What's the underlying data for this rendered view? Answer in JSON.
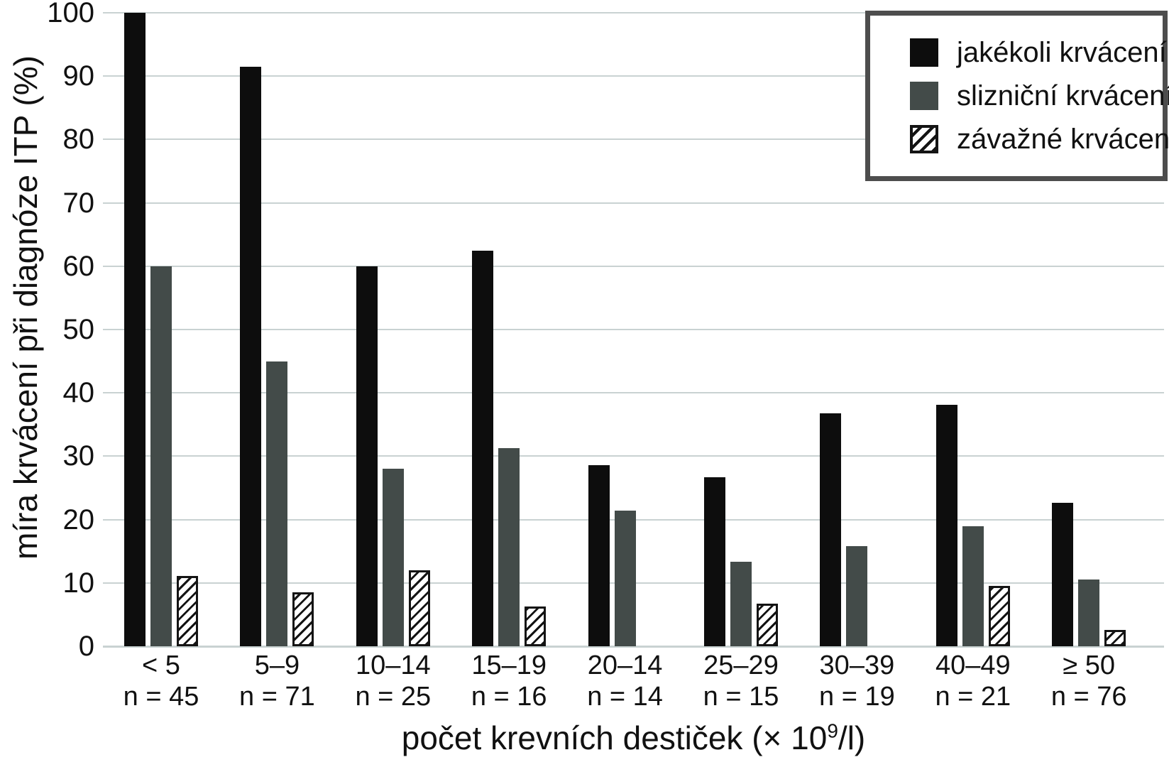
{
  "chart_data": {
    "type": "bar",
    "title": "",
    "ylabel": "míra krvácení při diagnóze ITP (%)",
    "xlabel_prefix": "počet krevních destiček (× 10",
    "xlabel_sup": "9",
    "xlabel_suffix": "/l)",
    "ylim": [
      0,
      100
    ],
    "yticks": [
      0,
      10,
      20,
      30,
      40,
      50,
      60,
      70,
      80,
      90,
      100
    ],
    "grid": "horizontal-only",
    "legend_position": "top-right",
    "categories": [
      "< 5",
      "5–9",
      "10–14",
      "15–19",
      "20–14",
      "25–29",
      "30–39",
      "40–49",
      "≥ 50"
    ],
    "group_counts": [
      "n = 45",
      "n = 71",
      "n = 25",
      "n = 16",
      "n = 14",
      "n = 15",
      "n = 19",
      "n = 21",
      "n = 76"
    ],
    "series": [
      {
        "name": "jakékoli krvácení",
        "pattern": "solid",
        "color": "#0d0d0d",
        "values": [
          100,
          91.5,
          60,
          62.5,
          28.6,
          26.7,
          36.8,
          38.1,
          22.7
        ]
      },
      {
        "name": "slizniční krvácení",
        "pattern": "solid",
        "color": "#434b49",
        "values": [
          60,
          45,
          28,
          31.3,
          21.4,
          13.3,
          15.8,
          19,
          10.5
        ]
      },
      {
        "name": "závažné krvácení",
        "pattern": "hatched-diagonal",
        "color": "#141414",
        "values": [
          11.1,
          8.5,
          12,
          6.3,
          0,
          6.7,
          0,
          9.5,
          2.6
        ]
      }
    ]
  },
  "colors": {
    "background": "#ffffff",
    "gridline": "#c9d2d2",
    "text": "#111111",
    "legend_border": "#4d4d4d"
  }
}
